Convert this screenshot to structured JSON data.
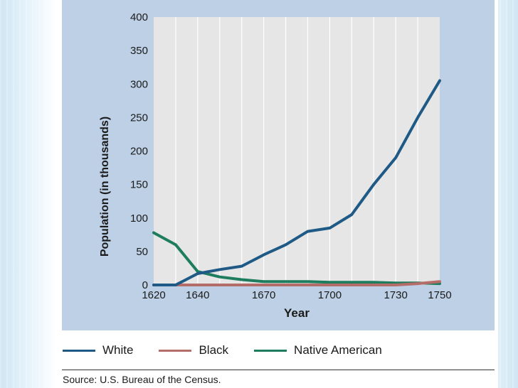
{
  "chart_data": {
    "type": "line",
    "xlabel": "Year",
    "ylabel": "Population (in thousands)",
    "ylim": [
      0,
      400
    ],
    "xlim": [
      1620,
      1750
    ],
    "y_ticks": [
      0,
      50,
      100,
      150,
      200,
      250,
      300,
      350,
      400
    ],
    "x_ticks": [
      1620,
      1640,
      1670,
      1700,
      1730,
      1750
    ],
    "grid": "vertical",
    "legend_position": "bottom",
    "series": [
      {
        "name": "White",
        "color": "#1f5a86",
        "x": [
          1620,
          1630,
          1640,
          1650,
          1660,
          1670,
          1680,
          1690,
          1700,
          1710,
          1720,
          1730,
          1740,
          1750
        ],
        "y": [
          0,
          0,
          17,
          23,
          28,
          45,
          60,
          80,
          85,
          105,
          150,
          190,
          250,
          305
        ]
      },
      {
        "name": "Black",
        "color": "#b56d6a",
        "x": [
          1620,
          1630,
          1640,
          1650,
          1660,
          1670,
          1680,
          1690,
          1700,
          1710,
          1720,
          1730,
          1740,
          1750
        ],
        "y": [
          0,
          0,
          0,
          0,
          0,
          0,
          0,
          0,
          0,
          0,
          0,
          0,
          2,
          5
        ]
      },
      {
        "name": "Native American",
        "color": "#1d7d5e",
        "x": [
          1620,
          1630,
          1640,
          1650,
          1660,
          1670,
          1680,
          1690,
          1700,
          1710,
          1720,
          1730,
          1740,
          1750
        ],
        "y": [
          78,
          60,
          20,
          12,
          8,
          5,
          5,
          5,
          4,
          4,
          4,
          3,
          3,
          2
        ]
      }
    ]
  },
  "source": "Source: U.S. Bureau of the Census."
}
